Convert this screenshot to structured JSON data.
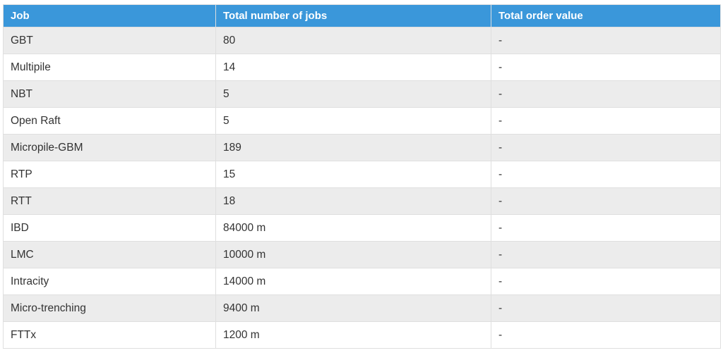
{
  "chart_data": {
    "type": "table",
    "columns": [
      "Job",
      "Total number of jobs",
      "Total order value"
    ],
    "rows": [
      [
        "GBT",
        "80",
        "-"
      ],
      [
        "Multipile",
        "14",
        "-"
      ],
      [
        "NBT",
        "5",
        "-"
      ],
      [
        "Open Raft",
        "5",
        "-"
      ],
      [
        "Micropile-GBM",
        "189",
        "-"
      ],
      [
        "RTP",
        "15",
        "-"
      ],
      [
        "RTT",
        "18",
        "-"
      ],
      [
        "IBD",
        "84000 m",
        "-"
      ],
      [
        "LMC",
        "10000 m",
        "-"
      ],
      [
        "Intracity",
        "14000 m",
        "-"
      ],
      [
        "Micro-trenching",
        "9400 m",
        "-"
      ],
      [
        "FTTx",
        "1200 m",
        "-"
      ]
    ],
    "layout": {
      "zebra_striping": true,
      "first_body_row_shaded": true,
      "header_text_align": "left",
      "body_text_align": "left"
    }
  },
  "colors": {
    "header_bg": "#3a97da",
    "header_text": "#ffffff",
    "row_bg": "#ffffff",
    "row_alt_bg": "#ececec",
    "border": "#dfdfdf",
    "body_text": "#333333",
    "page_bg": "#ffffff"
  }
}
